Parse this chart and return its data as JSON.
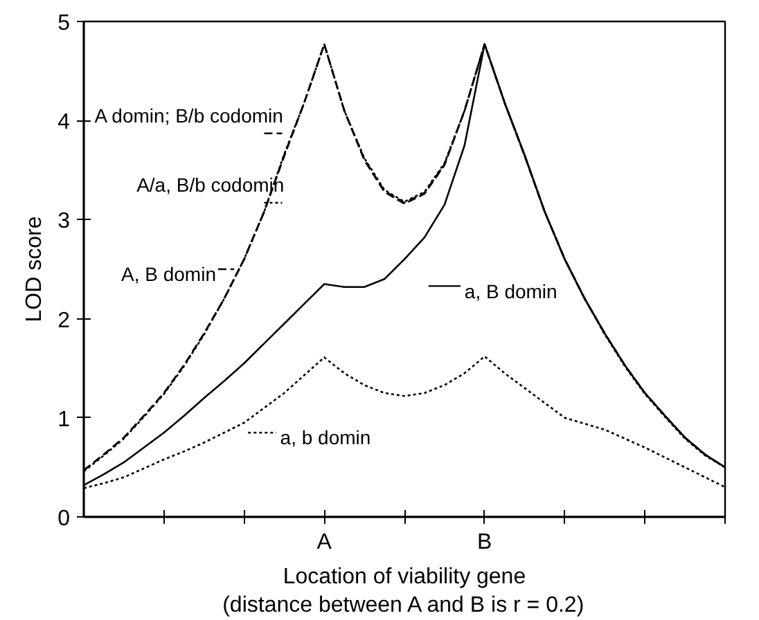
{
  "chart_data": {
    "type": "line",
    "xlabel": "Location of viability gene\n(distance between A and B is r = 0.2)",
    "ylabel": "LOD score",
    "categories": [
      null,
      null,
      null,
      null,
      null,
      null,
      null,
      null,
      null,
      null,
      null,
      null,
      "A",
      null,
      null,
      null,
      null,
      null,
      null,
      null,
      "B",
      null,
      null,
      null,
      null,
      null,
      null,
      null,
      null,
      null,
      null,
      null,
      null
    ],
    "ylim": [
      0,
      5
    ],
    "yticks": [
      0,
      1,
      2,
      3,
      4,
      5
    ],
    "grid": false,
    "marker": "none",
    "legend": "center",
    "series": [
      {
        "name": "A domin; B/b codomin",
        "color": "#000000",
        "line_style": "dashed",
        "values": [
          0.47,
          0.63,
          0.8,
          1.02,
          1.25,
          1.53,
          1.85,
          2.2,
          2.6,
          3.08,
          3.65,
          4.18,
          4.77,
          4.1,
          3.6,
          3.28,
          3.16,
          3.26,
          3.55,
          4.1,
          4.77,
          4.18,
          3.65,
          3.08,
          2.6,
          2.2,
          1.85,
          1.53,
          1.25,
          1.02,
          0.8,
          0.63,
          0.5
        ]
      },
      {
        "name": "A/a, B/b codomin",
        "color": "#000000",
        "line_style": "dotted",
        "values": [
          0.46,
          0.62,
          0.79,
          1.01,
          1.24,
          1.52,
          1.84,
          2.2,
          2.6,
          3.08,
          3.66,
          4.18,
          4.77,
          4.1,
          3.62,
          3.3,
          3.18,
          3.28,
          3.57,
          4.1,
          4.77,
          4.18,
          3.65,
          3.08,
          2.6,
          2.2,
          1.84,
          1.52,
          1.24,
          1.01,
          0.79,
          0.62,
          0.5
        ]
      },
      {
        "name": "A, B domin",
        "color": "#000000",
        "line_style": "dashed",
        "values": [
          0.47,
          0.63,
          0.8,
          1.02,
          1.25,
          1.53,
          1.85,
          2.2,
          2.6,
          3.08,
          3.64,
          4.18,
          4.77,
          4.1,
          3.61,
          3.29,
          3.17,
          3.27,
          3.56,
          4.1,
          4.77,
          4.18,
          3.64,
          3.08,
          2.6,
          2.2,
          1.85,
          1.53,
          1.25,
          1.02,
          0.8,
          0.63,
          0.5
        ]
      },
      {
        "name": "a, B domin",
        "color": "#000000",
        "line_style": "solid",
        "values": [
          0.32,
          0.43,
          0.55,
          0.7,
          0.85,
          1.02,
          1.2,
          1.37,
          1.55,
          1.75,
          1.95,
          2.15,
          2.35,
          2.32,
          2.32,
          2.4,
          2.6,
          2.82,
          3.15,
          3.75,
          4.77,
          4.18,
          3.65,
          3.08,
          2.6,
          2.2,
          1.85,
          1.53,
          1.25,
          1.02,
          0.8,
          0.63,
          0.5
        ]
      },
      {
        "name": "a, b domin",
        "color": "#000000",
        "line_style": "dotted",
        "values": [
          0.29,
          0.34,
          0.4,
          0.49,
          0.58,
          0.66,
          0.75,
          0.85,
          0.95,
          1.1,
          1.25,
          1.43,
          1.61,
          1.45,
          1.33,
          1.25,
          1.22,
          1.25,
          1.33,
          1.45,
          1.62,
          1.45,
          1.3,
          1.15,
          1.0,
          0.94,
          0.88,
          0.79,
          0.7,
          0.6,
          0.5,
          0.4,
          0.3
        ]
      }
    ]
  }
}
